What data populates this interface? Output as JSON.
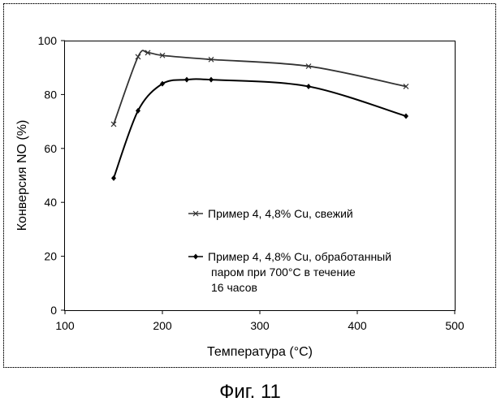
{
  "chart_data": {
    "type": "line",
    "title": "",
    "xlabel": "Температура (°C)",
    "ylabel": "Конверсия NO (%)",
    "xlim": [
      100,
      500
    ],
    "ylim": [
      0,
      100
    ],
    "xticks": [
      "100",
      "200",
      "300",
      "400",
      "500"
    ],
    "yticks": [
      "0",
      "20",
      "40",
      "60",
      "80",
      "100"
    ],
    "grid": false,
    "legend_position": "inside-right",
    "series": [
      {
        "name": "Пример 4, 4,8% Cu, свежий",
        "legend_lines": [
          "Пример 4, 4,8% Cu, свежий"
        ],
        "marker": "x",
        "color": "#333333",
        "x": [
          150,
          175,
          185,
          200,
          250,
          350,
          450
        ],
        "y": [
          69,
          94,
          95.5,
          94.5,
          93,
          90.5,
          83
        ]
      },
      {
        "name": "Пример 4, 4,8% Cu, обработанный паром при 700°C в течение 16 часов",
        "legend_lines": [
          "Пример 4, 4,8% Cu, обработанный",
          "паром при 700°C в течение",
          "16 часов"
        ],
        "marker": "diamond",
        "color": "#000000",
        "x": [
          150,
          175,
          200,
          225,
          250,
          350,
          450
        ],
        "y": [
          49,
          74,
          84,
          85.5,
          85.5,
          83,
          72
        ]
      }
    ]
  },
  "caption": "Фиг. 11"
}
